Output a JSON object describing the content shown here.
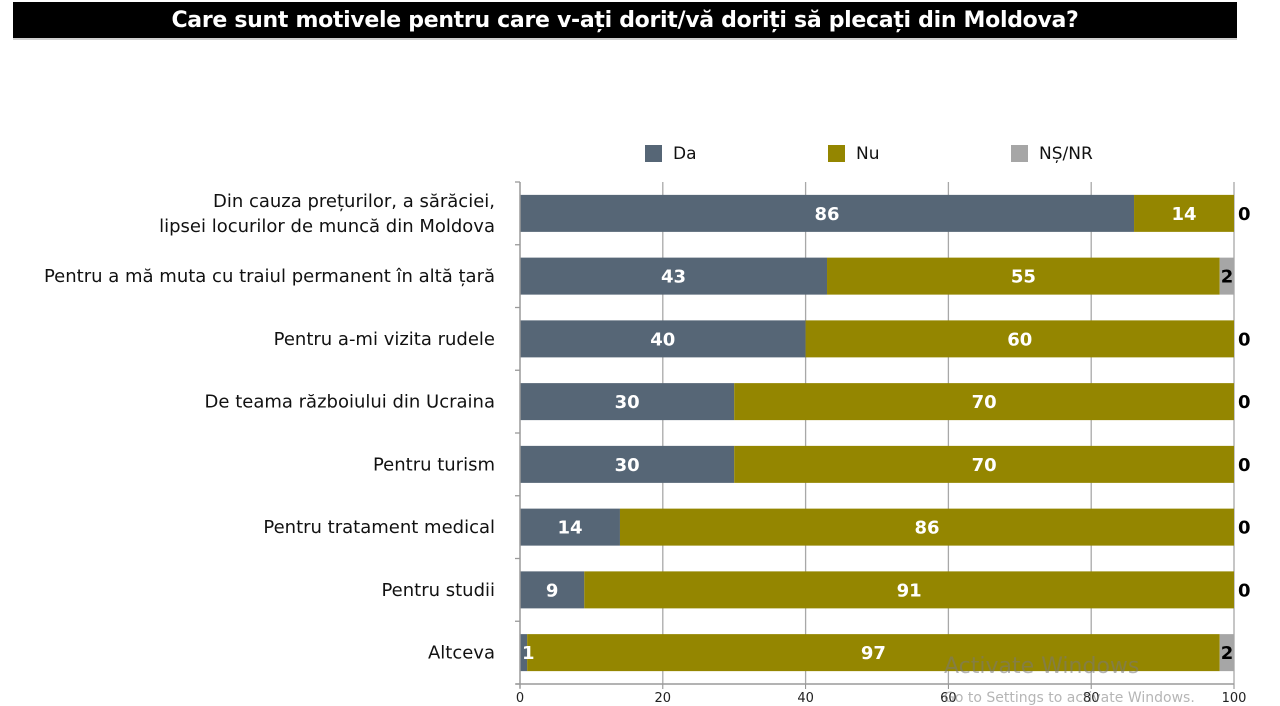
{
  "title": "Care sunt motivele pentru care v-ați dorit/vă doriți să plecați din Moldova?",
  "watermark": {
    "line1": "Activate Windows",
    "line2": "Go to Settings to activate Windows."
  },
  "chart_data": {
    "type": "bar",
    "orientation": "horizontal",
    "stacked": true,
    "title": "Care sunt motivele pentru care v-ați dorit/vă doriți să plecați din Moldova?",
    "xlabel": "",
    "ylabel": "",
    "xlim": [
      0,
      100
    ],
    "xticks": [
      0,
      20,
      40,
      60,
      80,
      100
    ],
    "grid": true,
    "legend_position": "top",
    "categories": [
      [
        "Din cauza prețurilor, a sărăciei,",
        "lipsei locurilor de muncă din Moldova"
      ],
      [
        "Pentru a mă muta cu traiul permanent în altă țară"
      ],
      [
        "Pentru a-mi vizita rudele"
      ],
      [
        "De teama războiului din Ucraina"
      ],
      [
        "Pentru turism"
      ],
      [
        "Pentru tratament medical"
      ],
      [
        "Pentru studii"
      ],
      [
        "Altceva"
      ]
    ],
    "series": [
      {
        "name": "Da",
        "color": "#566676",
        "label_color": "#ffffff",
        "values": [
          86,
          43,
          40,
          30,
          30,
          14,
          9,
          1
        ]
      },
      {
        "name": "Nu",
        "color": "#948600",
        "label_color": "#ffffff",
        "values": [
          14,
          55,
          60,
          70,
          70,
          86,
          91,
          97
        ]
      },
      {
        "name": "NȘ/NR",
        "color": "#a6a6a6",
        "label_color": "#000000",
        "values": [
          0,
          2,
          0,
          0,
          0,
          0,
          0,
          2
        ]
      }
    ]
  }
}
